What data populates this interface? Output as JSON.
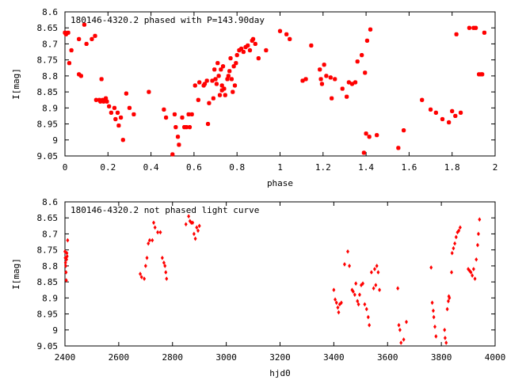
{
  "colors": {
    "marker": "#ff0000",
    "axis": "#000000",
    "background": "#ffffff"
  },
  "chart_data": [
    {
      "type": "scatter",
      "title": "180146-4320.2 phased with P=143.90day",
      "xlabel": "phase",
      "ylabel": "I[mag]",
      "xlim": [
        0,
        2
      ],
      "ylim": [
        9.05,
        8.6
      ],
      "y_inverted": true,
      "grid": false,
      "legend": "none",
      "xticks": [
        "0",
        "0.2",
        "0.4",
        "0.6",
        "0.8",
        "1",
        "1.2",
        "1.4",
        "1.6",
        "1.8",
        "2"
      ],
      "yticks": [
        "8.6",
        "8.65",
        "8.7",
        "8.75",
        "8.8",
        "8.85",
        "8.9",
        "8.95",
        "9",
        "9.05"
      ],
      "series": [
        {
          "marker": "star",
          "points": [
            [
              0.0,
              8.665
            ],
            [
              0.005,
              8.67
            ],
            [
              0.015,
              8.665
            ],
            [
              0.02,
              8.76
            ],
            [
              0.03,
              8.72
            ],
            [
              0.065,
              8.685
            ],
            [
              0.065,
              8.795
            ],
            [
              0.075,
              8.8
            ],
            [
              0.09,
              8.64
            ],
            [
              0.1,
              8.7
            ],
            [
              0.125,
              8.685
            ],
            [
              0.14,
              8.675
            ],
            [
              0.145,
              8.875
            ],
            [
              0.16,
              8.875
            ],
            [
              0.165,
              8.88
            ],
            [
              0.17,
              8.81
            ],
            [
              0.175,
              8.875
            ],
            [
              0.18,
              8.88
            ],
            [
              0.19,
              8.87
            ],
            [
              0.195,
              8.88
            ],
            [
              0.205,
              8.895
            ],
            [
              0.215,
              8.915
            ],
            [
              0.23,
              8.9
            ],
            [
              0.235,
              8.935
            ],
            [
              0.245,
              8.915
            ],
            [
              0.25,
              8.955
            ],
            [
              0.26,
              8.93
            ],
            [
              0.27,
              9.0
            ],
            [
              0.285,
              8.855
            ],
            [
              0.3,
              8.9
            ],
            [
              0.32,
              8.92
            ],
            [
              0.39,
              8.85
            ],
            [
              0.46,
              8.905
            ],
            [
              0.47,
              8.93
            ],
            [
              0.5,
              9.045
            ],
            [
              0.51,
              8.92
            ],
            [
              0.515,
              8.96
            ],
            [
              0.525,
              8.99
            ],
            [
              0.53,
              9.015
            ],
            [
              0.545,
              8.93
            ],
            [
              0.555,
              8.96
            ],
            [
              0.565,
              8.96
            ],
            [
              0.575,
              8.92
            ],
            [
              0.58,
              8.96
            ],
            [
              0.59,
              8.92
            ],
            [
              0.605,
              8.83
            ],
            [
              0.62,
              8.875
            ],
            [
              0.625,
              8.82
            ],
            [
              0.645,
              8.83
            ],
            [
              0.65,
              8.825
            ],
            [
              0.66,
              8.815
            ],
            [
              0.665,
              8.95
            ],
            [
              0.67,
              8.885
            ],
            [
              0.685,
              8.815
            ],
            [
              0.69,
              8.87
            ],
            [
              0.695,
              8.78
            ],
            [
              0.7,
              8.81
            ],
            [
              0.705,
              8.825
            ],
            [
              0.71,
              8.76
            ],
            [
              0.715,
              8.8
            ],
            [
              0.72,
              8.86
            ],
            [
              0.725,
              8.78
            ],
            [
              0.73,
              8.83
            ],
            [
              0.73,
              8.845
            ],
            [
              0.735,
              8.77
            ],
            [
              0.74,
              8.84
            ],
            [
              0.745,
              8.86
            ],
            [
              0.755,
              8.81
            ],
            [
              0.76,
              8.8
            ],
            [
              0.765,
              8.785
            ],
            [
              0.77,
              8.745
            ],
            [
              0.775,
              8.81
            ],
            [
              0.78,
              8.85
            ],
            [
              0.785,
              8.77
            ],
            [
              0.79,
              8.83
            ],
            [
              0.795,
              8.76
            ],
            [
              0.8,
              8.735
            ],
            [
              0.81,
              8.72
            ],
            [
              0.82,
              8.715
            ],
            [
              0.83,
              8.725
            ],
            [
              0.84,
              8.71
            ],
            [
              0.85,
              8.705
            ],
            [
              0.86,
              8.72
            ],
            [
              0.87,
              8.69
            ],
            [
              0.875,
              8.685
            ],
            [
              0.885,
              8.7
            ],
            [
              0.9,
              8.745
            ],
            [
              0.935,
              8.72
            ],
            [
              1.0,
              8.66
            ],
            [
              1.03,
              8.67
            ],
            [
              1.045,
              8.685
            ],
            [
              1.105,
              8.815
            ],
            [
              1.12,
              8.81
            ],
            [
              1.145,
              8.705
            ],
            [
              1.185,
              8.78
            ],
            [
              1.19,
              8.81
            ],
            [
              1.195,
              8.825
            ],
            [
              1.205,
              8.765
            ],
            [
              1.215,
              8.8
            ],
            [
              1.235,
              8.805
            ],
            [
              1.24,
              8.87
            ],
            [
              1.255,
              8.81
            ],
            [
              1.29,
              8.84
            ],
            [
              1.31,
              8.865
            ],
            [
              1.32,
              8.82
            ],
            [
              1.335,
              8.825
            ],
            [
              1.35,
              8.82
            ],
            [
              1.36,
              8.755
            ],
            [
              1.38,
              8.735
            ],
            [
              1.39,
              9.04
            ],
            [
              1.395,
              8.79
            ],
            [
              1.4,
              8.98
            ],
            [
              1.405,
              8.69
            ],
            [
              1.415,
              8.99
            ],
            [
              1.42,
              8.655
            ],
            [
              1.45,
              8.985
            ],
            [
              1.55,
              9.025
            ],
            [
              1.575,
              8.97
            ],
            [
              1.66,
              8.875
            ],
            [
              1.7,
              8.905
            ],
            [
              1.725,
              8.915
            ],
            [
              1.755,
              8.935
            ],
            [
              1.785,
              8.945
            ],
            [
              1.8,
              8.91
            ],
            [
              1.815,
              8.925
            ],
            [
              1.82,
              8.67
            ],
            [
              1.84,
              8.915
            ],
            [
              1.88,
              8.65
            ],
            [
              1.9,
              8.65
            ],
            [
              1.91,
              8.65
            ],
            [
              1.925,
              8.795
            ],
            [
              1.935,
              8.795
            ],
            [
              1.94,
              8.795
            ],
            [
              1.95,
              8.665
            ]
          ]
        }
      ]
    },
    {
      "type": "scatter",
      "title": "180146-4320.2 not phased light curve",
      "xlabel": "hjd0",
      "ylabel": "I[mag]",
      "xlim": [
        2400,
        4000
      ],
      "ylim": [
        9.05,
        8.6
      ],
      "y_inverted": true,
      "grid": false,
      "legend": "none",
      "xticks": [
        "2400",
        "2600",
        "2800",
        "3000",
        "3200",
        "3400",
        "3600",
        "3800",
        "4000"
      ],
      "yticks": [
        "8.6",
        "8.65",
        "8.7",
        "8.75",
        "8.8",
        "8.85",
        "8.9",
        "8.95",
        "9",
        "9.05"
      ],
      "series": [
        {
          "marker": "diamond",
          "points": [
            [
              2400,
              8.755
            ],
            [
              2401,
              8.775
            ],
            [
              2402,
              8.79
            ],
            [
              2403,
              8.8
            ],
            [
              2404,
              8.82
            ],
            [
              2405,
              8.845
            ],
            [
              2406,
              8.78
            ],
            [
              2407,
              8.76
            ],
            [
              2408,
              8.77
            ],
            [
              2410,
              8.72
            ],
            [
              2680,
              8.825
            ],
            [
              2685,
              8.835
            ],
            [
              2695,
              8.84
            ],
            [
              2700,
              8.8
            ],
            [
              2705,
              8.775
            ],
            [
              2710,
              8.73
            ],
            [
              2715,
              8.72
            ],
            [
              2725,
              8.72
            ],
            [
              2730,
              8.665
            ],
            [
              2735,
              8.68
            ],
            [
              2745,
              8.695
            ],
            [
              2755,
              8.695
            ],
            [
              2762,
              8.775
            ],
            [
              2768,
              8.79
            ],
            [
              2772,
              8.8
            ],
            [
              2775,
              8.82
            ],
            [
              2778,
              8.84
            ],
            [
              2850,
              8.67
            ],
            [
              2860,
              8.645
            ],
            [
              2865,
              8.66
            ],
            [
              2870,
              8.665
            ],
            [
              2875,
              8.665
            ],
            [
              2880,
              8.7
            ],
            [
              2885,
              8.715
            ],
            [
              2890,
              8.68
            ],
            [
              2895,
              8.69
            ],
            [
              2900,
              8.675
            ],
            [
              3400,
              8.875
            ],
            [
              3405,
              8.905
            ],
            [
              3410,
              8.915
            ],
            [
              3415,
              8.93
            ],
            [
              3418,
              8.945
            ],
            [
              3422,
              8.92
            ],
            [
              3428,
              8.915
            ],
            [
              3440,
              8.795
            ],
            [
              3452,
              8.755
            ],
            [
              3458,
              8.8
            ],
            [
              3468,
              8.875
            ],
            [
              3472,
              8.88
            ],
            [
              3478,
              8.89
            ],
            [
              3482,
              8.855
            ],
            [
              3488,
              8.91
            ],
            [
              3492,
              8.92
            ],
            [
              3496,
              8.89
            ],
            [
              3502,
              8.86
            ],
            [
              3508,
              8.855
            ],
            [
              3515,
              8.92
            ],
            [
              3522,
              8.935
            ],
            [
              3528,
              8.96
            ],
            [
              3532,
              8.985
            ],
            [
              3540,
              8.82
            ],
            [
              3548,
              8.87
            ],
            [
              3552,
              8.81
            ],
            [
              3556,
              8.86
            ],
            [
              3560,
              8.8
            ],
            [
              3565,
              8.82
            ],
            [
              3570,
              8.875
            ],
            [
              3638,
              8.87
            ],
            [
              3642,
              8.985
            ],
            [
              3646,
              9.0
            ],
            [
              3650,
              9.04
            ],
            [
              3660,
              9.03
            ],
            [
              3670,
              8.975
            ],
            [
              3762,
              8.805
            ],
            [
              3766,
              8.915
            ],
            [
              3770,
              8.94
            ],
            [
              3772,
              8.96
            ],
            [
              3776,
              8.99
            ],
            [
              3780,
              9.02
            ],
            [
              3812,
              9.0
            ],
            [
              3814,
              9.025
            ],
            [
              3818,
              9.04
            ],
            [
              3822,
              8.935
            ],
            [
              3826,
              8.91
            ],
            [
              3828,
              8.895
            ],
            [
              3830,
              8.9
            ],
            [
              3838,
              8.82
            ],
            [
              3840,
              8.76
            ],
            [
              3845,
              8.745
            ],
            [
              3850,
              8.73
            ],
            [
              3855,
              8.71
            ],
            [
              3860,
              8.695
            ],
            [
              3865,
              8.69
            ],
            [
              3870,
              8.68
            ],
            [
              3900,
              8.81
            ],
            [
              3905,
              8.815
            ],
            [
              3910,
              8.82
            ],
            [
              3915,
              8.83
            ],
            [
              3920,
              8.81
            ],
            [
              3925,
              8.84
            ],
            [
              3930,
              8.78
            ],
            [
              3935,
              8.735
            ],
            [
              3938,
              8.7
            ],
            [
              3942,
              8.655
            ]
          ]
        }
      ]
    }
  ]
}
